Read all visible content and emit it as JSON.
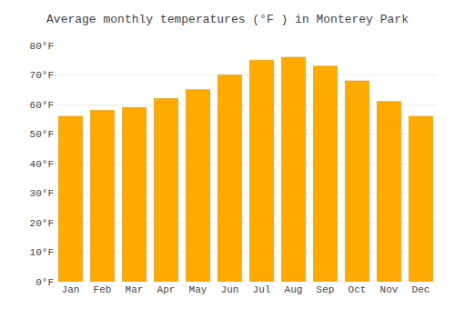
{
  "chart_data": {
    "type": "bar",
    "title": "Average monthly temperatures (°F ) in Monterey Park",
    "categories": [
      "Jan",
      "Feb",
      "Mar",
      "Apr",
      "May",
      "Jun",
      "Jul",
      "Aug",
      "Sep",
      "Oct",
      "Nov",
      "Dec"
    ],
    "values": [
      56,
      58,
      59,
      62,
      65,
      70,
      75,
      76,
      73,
      68,
      61,
      56
    ],
    "color": "#FFAA00",
    "ylim": [
      0,
      80
    ],
    "yticks": [
      {
        "value": 0,
        "label": "0°F"
      },
      {
        "value": 10,
        "label": "10°F"
      },
      {
        "value": 20,
        "label": "20°F"
      },
      {
        "value": 30,
        "label": "30°F"
      },
      {
        "value": 40,
        "label": "40°F"
      },
      {
        "value": 50,
        "label": "50°F"
      },
      {
        "value": 60,
        "label": "60°F"
      },
      {
        "value": 70,
        "label": "70°F"
      },
      {
        "value": 80,
        "label": "80°F"
      }
    ],
    "grid": true
  }
}
